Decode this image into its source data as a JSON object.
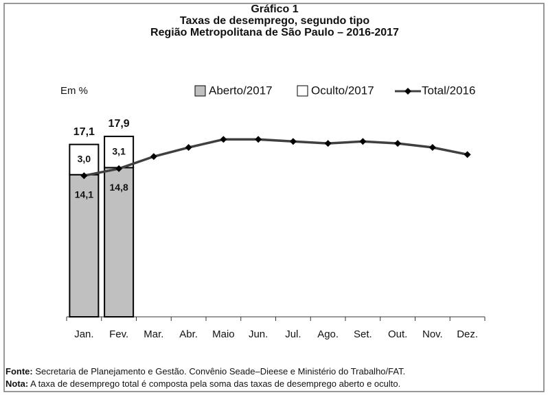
{
  "chart_data": {
    "type": "combo",
    "title": "Gráfico 1",
    "subtitle": [
      "Taxas de desemprego, segundo tipo",
      "Região Metropolitana de São Paulo – 2016-2017"
    ],
    "unit_label": "Em %",
    "categories": [
      "Jan.",
      "Fev.",
      "Mar.",
      "Abr.",
      "Maio",
      "Jun.",
      "Jul.",
      "Ago.",
      "Set.",
      "Out.",
      "Nov.",
      "Dez."
    ],
    "series": [
      {
        "name": "Aberto/2017",
        "type": "bar",
        "color": "#c0c0c0",
        "values": [
          14.1,
          14.8,
          null,
          null,
          null,
          null,
          null,
          null,
          null,
          null,
          null,
          null
        ],
        "value_labels": [
          "14,1",
          "14,8",
          null,
          null,
          null,
          null,
          null,
          null,
          null,
          null,
          null,
          null
        ]
      },
      {
        "name": "Oculto/2017",
        "type": "bar",
        "color": "#ffffff",
        "values": [
          3.0,
          3.1,
          null,
          null,
          null,
          null,
          null,
          null,
          null,
          null,
          null,
          null
        ],
        "value_labels": [
          "3,0",
          "3,1",
          null,
          null,
          null,
          null,
          null,
          null,
          null,
          null,
          null,
          null
        ]
      },
      {
        "name": "Total/2016",
        "type": "line",
        "color": "#404040",
        "values": [
          14.0,
          14.7,
          15.9,
          16.8,
          17.6,
          17.6,
          17.4,
          17.2,
          17.4,
          17.2,
          16.8,
          16.1
        ]
      }
    ],
    "bar_totals": {
      "values": [
        17.1,
        17.9
      ],
      "labels": [
        "17,1",
        "17,9"
      ]
    },
    "ylim": [
      0,
      20
    ],
    "notes": [
      {
        "label": "Fonte:",
        "text": " Secretaria de Planejamento e Gestão. Convênio Seade–Dieese e Ministério do Trabalho/FAT."
      },
      {
        "label": "Nota:",
        "text": " A taxa de desemprego total é composta pela soma das taxas de desemprego aberto e oculto."
      }
    ]
  }
}
